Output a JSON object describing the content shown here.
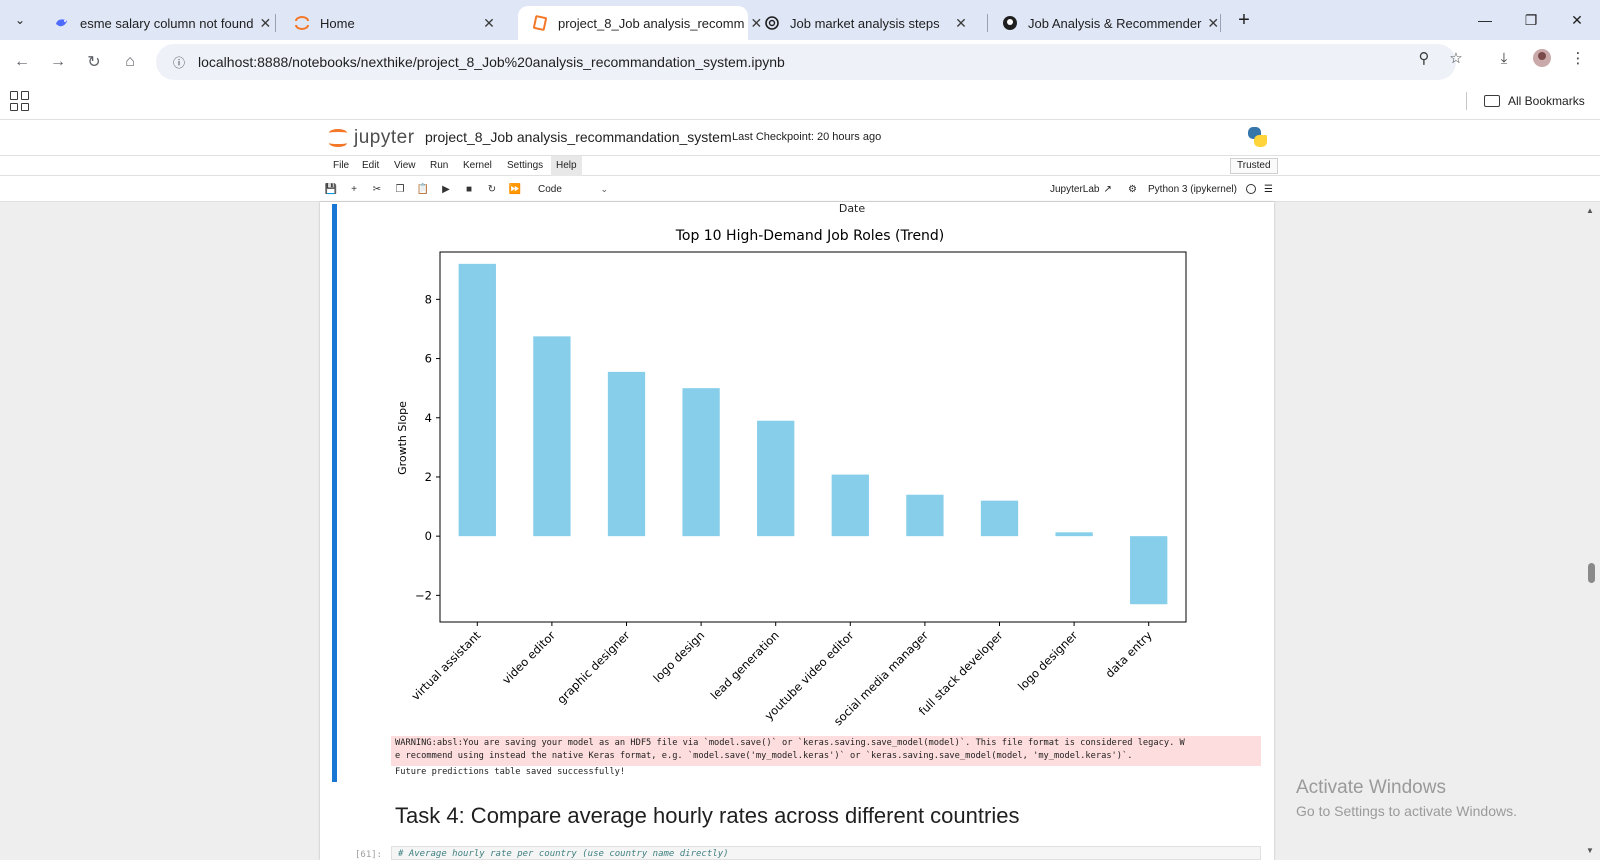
{
  "browser": {
    "tabs": [
      {
        "title": "esme salary column not found",
        "icon": "deepseek-whale-icon",
        "active": false
      },
      {
        "title": "Home",
        "icon": "jupyter-icon",
        "active": false
      },
      {
        "title": "project_8_Job analysis_recomm",
        "icon": "notebook-icon",
        "active": true
      },
      {
        "title": "Job market analysis steps",
        "icon": "openai-icon",
        "active": false
      },
      {
        "title": "Job Analysis & Recommender",
        "icon": "github-icon",
        "active": false
      }
    ],
    "url": "localhost:8888/notebooks/nexthike/project_8_Job%20analysis_recommandation_system.ipynb",
    "bookmarks_label": "All Bookmarks"
  },
  "jupyter": {
    "logo_text": "jupyter",
    "notebook_title": "project_8_Job analysis_recommandation_system",
    "checkpoint": "Last Checkpoint: 20 hours ago",
    "menu": [
      "File",
      "Edit",
      "View",
      "Run",
      "Kernel",
      "Settings",
      "Help"
    ],
    "trusted": "Trusted",
    "cell_type": "Code",
    "jupyterlab_link": "JupyterLab",
    "kernel": "Python 3 (ipykernel)"
  },
  "output": {
    "previous_axis_label": "Date",
    "warning_line1": "WARNING:absl:You are saving your model as an HDF5 file via `model.save()` or `keras.saving.save_model(model)`. This file format is considered legacy. W",
    "warning_line2": "e recommend using instead the native Keras format, e.g. `model.save('my_model.keras')` or `keras.saving.save_model(model, 'my_model.keras')`.",
    "stdout": "Future predictions table saved successfully!"
  },
  "task_heading": "Task 4: Compare average hourly rates across different countries",
  "next_cell": {
    "prompt": "[61]:",
    "code": "# Average hourly rate per country (use country name directly)"
  },
  "watermark": {
    "line1": "Activate Windows",
    "line2": "Go to Settings to activate Windows."
  },
  "chart_data": {
    "type": "bar",
    "title": "Top 10 High-Demand Job Roles (Trend)",
    "xlabel": "",
    "ylabel": "Growth Slope",
    "categories": [
      "virtual assistant",
      "video editor",
      "graphic designer",
      "logo design",
      "lead generation",
      "youtube video editor",
      "social media manager",
      "full stack developer",
      "logo designer",
      "data entry"
    ],
    "values": [
      9.2,
      6.75,
      5.55,
      5.0,
      3.9,
      2.08,
      1.4,
      1.2,
      0.13,
      -2.3
    ],
    "ylim": [
      -2.9,
      9.6
    ],
    "yticks": [
      -2,
      0,
      2,
      4,
      6,
      8
    ],
    "ytick_labels": [
      "−2",
      "0",
      "2",
      "4",
      "6",
      "8"
    ],
    "bar_color": "#87ceeb",
    "grid": false,
    "legend": "none"
  }
}
